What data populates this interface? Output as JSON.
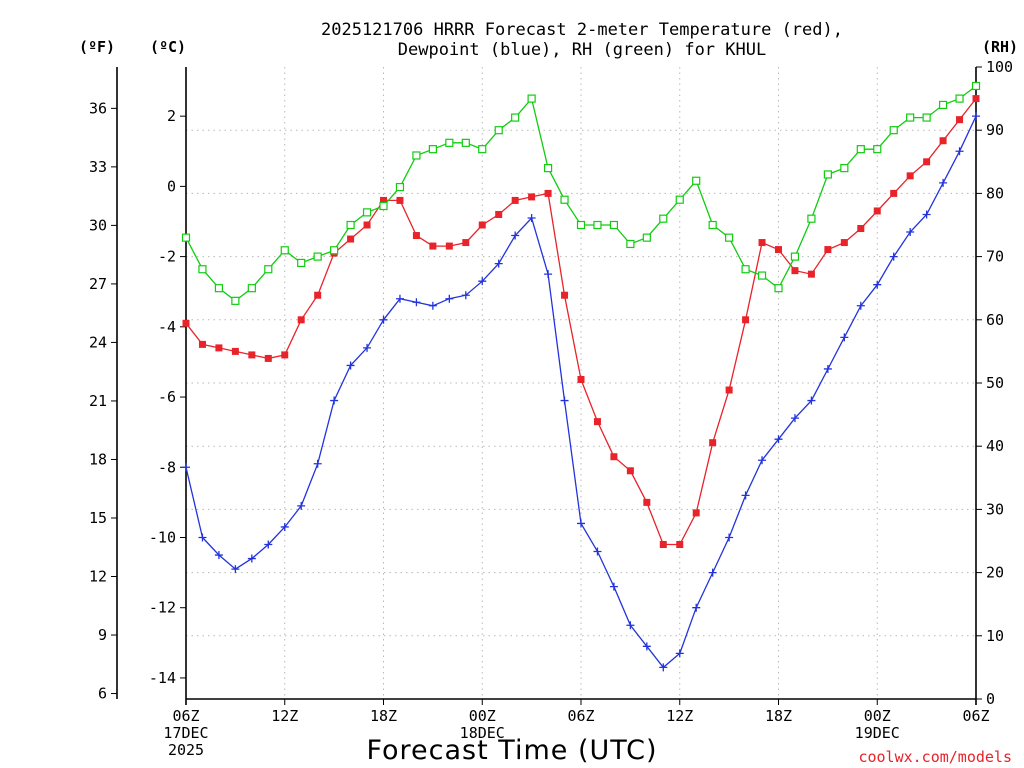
{
  "chart_data": {
    "type": "line",
    "title_line1": "2025121706 HRRR Forecast 2-meter Temperature (red),",
    "title_line2": "Dewpoint (blue), RH (green) for KHUL",
    "xlabel": "Forecast Time (UTC)",
    "credit": "coolwx.com/models",
    "colors": {
      "temperature": "#e8232a",
      "dewpoint": "#2233dd",
      "rh": "#11cc11"
    },
    "unit_labels": {
      "fahrenheit": "(ºF)",
      "celsius": "(ºC)",
      "rh": "(RH)"
    },
    "x_hours": [
      0,
      1,
      2,
      3,
      4,
      5,
      6,
      7,
      8,
      9,
      10,
      11,
      12,
      13,
      14,
      15,
      16,
      17,
      18,
      19,
      20,
      21,
      22,
      23,
      24,
      25,
      26,
      27,
      28,
      29,
      30,
      31,
      32,
      33,
      34,
      35,
      36,
      37,
      38,
      39,
      40,
      41,
      42,
      43,
      44,
      45,
      46,
      47,
      48
    ],
    "x_ticks": [
      {
        "hour": 0,
        "lines": [
          "06Z",
          "17DEC",
          "2025"
        ]
      },
      {
        "hour": 6,
        "lines": [
          "12Z"
        ]
      },
      {
        "hour": 12,
        "lines": [
          "18Z"
        ]
      },
      {
        "hour": 18,
        "lines": [
          "00Z",
          "18DEC"
        ]
      },
      {
        "hour": 24,
        "lines": [
          "06Z"
        ]
      },
      {
        "hour": 30,
        "lines": [
          "12Z"
        ]
      },
      {
        "hour": 36,
        "lines": [
          "18Z"
        ]
      },
      {
        "hour": 42,
        "lines": [
          "00Z",
          "19DEC"
        ]
      },
      {
        "hour": 48,
        "lines": [
          "06Z"
        ]
      }
    ],
    "celsius_range": [
      -14.6,
      3.4
    ],
    "celsius_ticks": [
      2,
      0,
      -2,
      -4,
      -6,
      -8,
      -10,
      -12,
      -14
    ],
    "fahrenheit_ticks": [
      36,
      33,
      30,
      27,
      24,
      21,
      18,
      15,
      12,
      9,
      6
    ],
    "rh_range": [
      0,
      100
    ],
    "rh_ticks": [
      0,
      10,
      20,
      30,
      40,
      50,
      60,
      70,
      80,
      90,
      100
    ],
    "series": [
      {
        "name": "Temperature (°C)",
        "marker": "filled-square",
        "axis": "celsius",
        "values": [
          -3.9,
          -4.5,
          -4.6,
          -4.7,
          -4.8,
          -4.9,
          -4.8,
          -3.8,
          -3.1,
          -1.9,
          -1.5,
          -1.1,
          -0.4,
          -0.4,
          -1.4,
          -1.7,
          -1.7,
          -1.6,
          -1.1,
          -0.8,
          -0.4,
          -0.3,
          -0.2,
          -3.1,
          -5.5,
          -6.7,
          -7.7,
          -8.1,
          -9.0,
          -10.2,
          -10.2,
          -9.3,
          -7.3,
          -5.8,
          -3.8,
          -1.6,
          -1.8,
          -2.4,
          -2.5,
          -1.8,
          -1.6,
          -1.2,
          -0.7,
          -0.2,
          0.3,
          0.7,
          1.3,
          1.9,
          2.5
        ]
      },
      {
        "name": "Dewpoint (°C)",
        "marker": "plus",
        "axis": "celsius",
        "values": [
          -8.0,
          -10.0,
          -10.5,
          -10.9,
          -10.6,
          -10.2,
          -9.7,
          -9.1,
          -7.9,
          -6.1,
          -5.1,
          -4.6,
          -3.8,
          -3.2,
          -3.3,
          -3.4,
          -3.2,
          -3.1,
          -2.7,
          -2.2,
          -1.4,
          -0.9,
          -2.5,
          -6.1,
          -9.6,
          -10.4,
          -11.4,
          -12.5,
          -13.1,
          -13.7,
          -13.3,
          -12.0,
          -11.0,
          -10.0,
          -8.8,
          -7.8,
          -7.2,
          -6.6,
          -6.1,
          -5.2,
          -4.3,
          -3.4,
          -2.8,
          -2.0,
          -1.3,
          -0.8,
          0.1,
          1.0,
          2.0
        ]
      },
      {
        "name": "Relative Humidity (%)",
        "marker": "open-square",
        "axis": "rh",
        "values": [
          73,
          68,
          65,
          63,
          65,
          68,
          71,
          69,
          70,
          71,
          75,
          77,
          78,
          81,
          86,
          87,
          88,
          88,
          87,
          90,
          92,
          95,
          84,
          79,
          75,
          75,
          75,
          72,
          73,
          76,
          79,
          82,
          75,
          73,
          68,
          67,
          65,
          70,
          76,
          83,
          84,
          87,
          87,
          90,
          92,
          92,
          94,
          95,
          97
        ]
      }
    ]
  }
}
